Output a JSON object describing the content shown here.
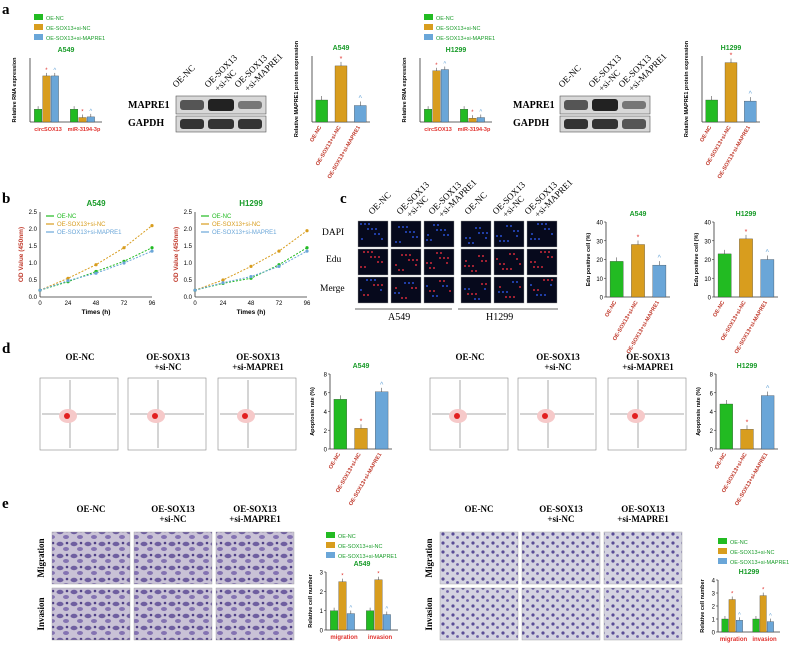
{
  "colors": {
    "green": "#22bb22",
    "orange": "#d89d1e",
    "blue": "#6aa6d8",
    "axis": "#333333",
    "title_green": "#1a9c2a",
    "title_red": "#c0392b",
    "red_star": "#e0322e"
  },
  "panels": {
    "a": "a",
    "b": "b",
    "c": "c",
    "d": "d",
    "e": "e"
  },
  "legend_labels": [
    "OE-NC",
    "OE-SOX13+si-NC",
    "OE-SOX13+si-MAPRE1"
  ],
  "wb": {
    "lanes": [
      "OE-NC",
      "OE-SOX13\n+si-NC",
      "OE-SOX13\n+si-MAPRE1"
    ],
    "bands": [
      "MAPRE1",
      "GAPDH"
    ],
    "cell_lines": [
      "A549",
      "H1299"
    ]
  },
  "edu_panel": {
    "col_headers": [
      "OE-NC",
      "OE-SOX13\n+si-NC",
      "OE-SOX13\n+si-MAPRE1",
      "OE-NC",
      "OE-SOX13\n+si-NC",
      "OE-SOX13\n+si-MAPRE1"
    ],
    "row_labels": [
      "DAPI",
      "Edu",
      "Merge"
    ],
    "cell_lines": [
      "A549",
      "H1299"
    ]
  },
  "flow_panel": {
    "headers": [
      "OE-NC",
      "OE-SOX13\n+si-NC",
      "OE-SOX13\n+si-MAPRE1"
    ]
  },
  "transwell_panel": {
    "headers": [
      "OE-NC",
      "OE-SOX13\n+si-NC",
      "OE-SOX13\n+si-MAPRE1"
    ],
    "row_labels": [
      "Migration",
      "Invasion"
    ]
  },
  "chart_data": [
    {
      "id": "a_rna_a549",
      "type": "bar",
      "title": "A549",
      "ylabel": "Relative RNA expression",
      "ylim": [
        0,
        5
      ],
      "categories": [
        "circSOX13",
        "miR-3194-3p"
      ],
      "series": [
        {
          "name": "OE-NC",
          "values": [
            1.0,
            1.0
          ]
        },
        {
          "name": "OE-SOX13+si-NC",
          "values": [
            3.6,
            0.35
          ]
        },
        {
          "name": "OE-SOX13+si-MAPRE1",
          "values": [
            3.6,
            0.4
          ]
        }
      ]
    },
    {
      "id": "a_prot_a549",
      "type": "bar",
      "title": "A549",
      "ylabel": "Relative MAPRE1 protein expression",
      "ylim": [
        0,
        3
      ],
      "categories": [
        "OE-NC",
        "OE-SOX13+si-NC",
        "OE-SOX13+si-MAPRE1"
      ],
      "values": [
        1.0,
        2.55,
        0.75
      ]
    },
    {
      "id": "a_rna_h1299",
      "type": "bar",
      "title": "H1299",
      "ylabel": "Relative RNA expression",
      "ylim": [
        0,
        5
      ],
      "categories": [
        "circSOX13",
        "miR-3194-3p"
      ],
      "series": [
        {
          "name": "OE-NC",
          "values": [
            1.0,
            1.0
          ]
        },
        {
          "name": "OE-SOX13+si-NC",
          "values": [
            4.0,
            0.3
          ]
        },
        {
          "name": "OE-SOX13+si-MAPRE1",
          "values": [
            4.1,
            0.35
          ]
        }
      ]
    },
    {
      "id": "a_prot_h1299",
      "type": "bar",
      "title": "H1299",
      "ylabel": "Relative MAPRE1 protein expression",
      "ylim": [
        0,
        3
      ],
      "categories": [
        "OE-NC",
        "OE-SOX13+si-NC",
        "OE-SOX13+si-MAPRE1"
      ],
      "values": [
        1.0,
        2.7,
        0.95
      ]
    },
    {
      "id": "b_a549",
      "type": "line",
      "title": "A549",
      "xlabel": "Times (h)",
      "ylabel": "OD Value (450nm)",
      "xlim": [
        0,
        96
      ],
      "ylim": [
        0,
        2.5
      ],
      "x": [
        0,
        24,
        48,
        72,
        96
      ],
      "xticks": [
        "0",
        "24",
        "48",
        "72",
        "96"
      ],
      "yticks": [
        "0.0",
        "0.5",
        "1.0",
        "1.5",
        "2.0",
        "2.5"
      ],
      "series": [
        {
          "name": "OE-NC",
          "values": [
            0.2,
            0.45,
            0.75,
            1.05,
            1.45
          ]
        },
        {
          "name": "OE-SOX13+si-NC",
          "values": [
            0.2,
            0.55,
            0.95,
            1.45,
            2.1
          ]
        },
        {
          "name": "OE-SOX13+si-MAPRE1",
          "values": [
            0.2,
            0.48,
            0.7,
            1.0,
            1.35
          ]
        }
      ]
    },
    {
      "id": "b_h1299",
      "type": "line",
      "title": "H1299",
      "xlabel": "Times (h)",
      "ylabel": "OD Value (450nm)",
      "xlim": [
        0,
        96
      ],
      "ylim": [
        0,
        2.5
      ],
      "x": [
        0,
        24,
        48,
        72,
        96
      ],
      "xticks": [
        "0",
        "24",
        "48",
        "72",
        "96"
      ],
      "yticks": [
        "0.0",
        "0.5",
        "1.0",
        "1.5",
        "2.0",
        "2.5"
      ],
      "series": [
        {
          "name": "OE-NC",
          "values": [
            0.2,
            0.4,
            0.55,
            0.95,
            1.45
          ]
        },
        {
          "name": "OE-SOX13+si-NC",
          "values": [
            0.2,
            0.5,
            0.9,
            1.35,
            1.95
          ]
        },
        {
          "name": "OE-SOX13+si-MAPRE1",
          "values": [
            0.2,
            0.42,
            0.6,
            0.9,
            1.35
          ]
        }
      ]
    },
    {
      "id": "c_a549",
      "type": "bar",
      "title": "A549",
      "ylabel": "Edu positive cell (%)",
      "ylim": [
        0,
        40
      ],
      "yticks": [
        "0",
        "10",
        "20",
        "30",
        "40"
      ],
      "categories": [
        "OE-NC",
        "OE-SOX13+si-NC",
        "OE-SOX13+si-MAPRE1"
      ],
      "values": [
        19,
        28,
        17
      ]
    },
    {
      "id": "c_h1299",
      "type": "bar",
      "title": "H1299",
      "ylabel": "Edu positive cell (%)",
      "ylim": [
        0,
        40
      ],
      "yticks": [
        "0",
        "10",
        "20",
        "30",
        "40"
      ],
      "categories": [
        "OE-NC",
        "OE-SOX13+si-NC",
        "OE-SOX13+si-MAPRE1"
      ],
      "values": [
        23,
        31,
        20
      ]
    },
    {
      "id": "d_a549",
      "type": "bar",
      "title": "A549",
      "ylabel": "Apoptosis rate (%)",
      "ylim": [
        0,
        8
      ],
      "yticks": [
        "0",
        "2",
        "4",
        "6",
        "8"
      ],
      "categories": [
        "OE-NC",
        "OE-SOX13+si-NC",
        "OE-SOX13+si-MAPRE1"
      ],
      "values": [
        5.3,
        2.2,
        6.1
      ]
    },
    {
      "id": "d_h1299",
      "type": "bar",
      "title": "H1299",
      "ylabel": "Apoptosis rate (%)",
      "ylim": [
        0,
        8
      ],
      "yticks": [
        "0",
        "2",
        "4",
        "6",
        "8"
      ],
      "categories": [
        "OE-NC",
        "OE-SOX13+si-NC",
        "OE-SOX13+si-MAPRE1"
      ],
      "values": [
        4.8,
        2.1,
        5.7
      ]
    },
    {
      "id": "e_a549",
      "type": "bar",
      "title": "A549",
      "ylabel": "Relative cell number",
      "ylim": [
        0,
        3
      ],
      "yticks": [
        "0",
        "1",
        "2",
        "3"
      ],
      "categories": [
        "migration",
        "invasion"
      ],
      "series": [
        {
          "name": "OE-NC",
          "values": [
            1.0,
            1.0
          ]
        },
        {
          "name": "OE-SOX13+si-NC",
          "values": [
            2.5,
            2.6
          ]
        },
        {
          "name": "OE-SOX13+si-MAPRE1",
          "values": [
            0.85,
            0.8
          ]
        }
      ]
    },
    {
      "id": "e_h1299",
      "type": "bar",
      "title": "H1299",
      "ylabel": "Relative cell number",
      "ylim": [
        0,
        4
      ],
      "yticks": [
        "0",
        "1",
        "2",
        "3",
        "4"
      ],
      "categories": [
        "migration",
        "invasion"
      ],
      "series": [
        {
          "name": "OE-NC",
          "values": [
            1.0,
            1.0
          ]
        },
        {
          "name": "OE-SOX13+si-NC",
          "values": [
            2.5,
            2.8
          ]
        },
        {
          "name": "OE-SOX13+si-MAPRE1",
          "values": [
            0.9,
            0.8
          ]
        }
      ]
    }
  ]
}
